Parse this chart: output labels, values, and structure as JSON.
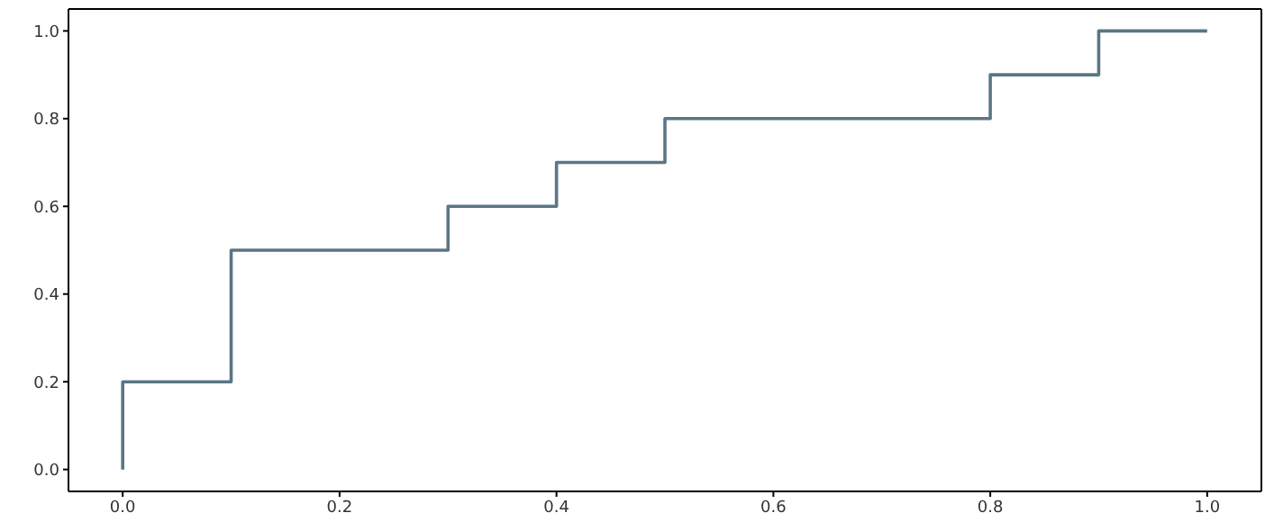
{
  "chart_data": {
    "type": "step",
    "x": [
      0,
      0,
      0.1,
      0.3,
      0.4,
      0.5,
      0.8,
      0.9,
      1.0
    ],
    "series": [
      {
        "color": "#5b7685",
        "values": [
          0,
          0.2,
          0.5,
          0.6,
          0.7,
          0.8,
          0.9,
          1.0,
          1.0
        ]
      }
    ],
    "xlim": [
      -0.05,
      1.05
    ],
    "ylim": [
      -0.05,
      1.05
    ],
    "xticks": [
      {
        "value": 0,
        "label": "0.0"
      },
      {
        "value": 0.2,
        "label": "0.2"
      },
      {
        "value": 0.4,
        "label": "0.4"
      },
      {
        "value": 0.6,
        "label": "0.6"
      },
      {
        "value": 0.8,
        "label": "0.8"
      },
      {
        "value": 1,
        "label": "1.0"
      }
    ],
    "yticks": [
      {
        "value": 0,
        "label": "0.0"
      },
      {
        "value": 0.2,
        "label": "0.2"
      },
      {
        "value": 0.4,
        "label": "0.4"
      },
      {
        "value": 0.6,
        "label": "0.6"
      },
      {
        "value": 0.8,
        "label": "0.8"
      },
      {
        "value": 1,
        "label": "1.0"
      }
    ],
    "grid": false,
    "marker": "none",
    "line_style": "solid"
  }
}
